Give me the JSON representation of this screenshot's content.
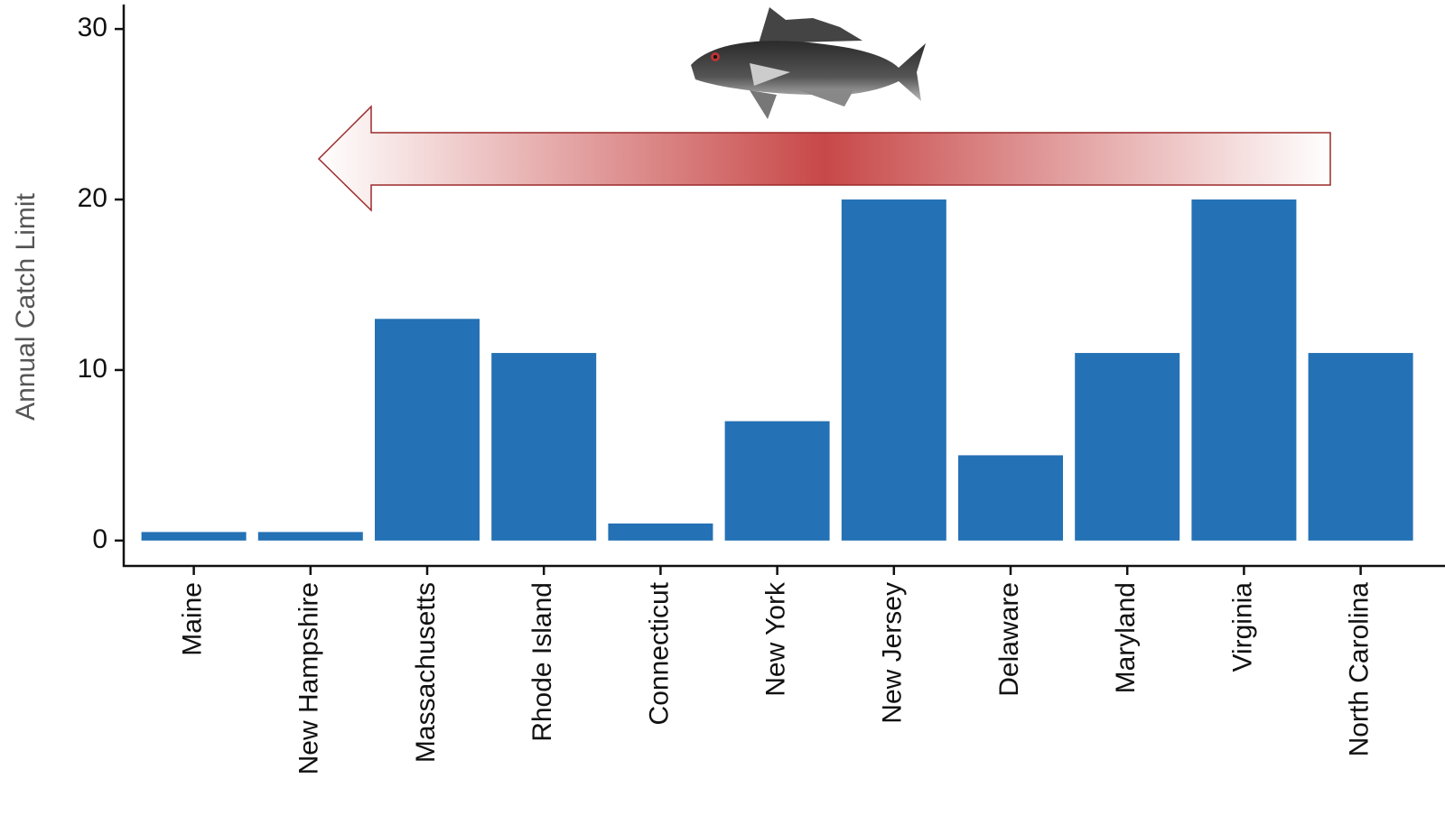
{
  "chart_data": {
    "type": "bar",
    "y_label": "Annual Catch Limit",
    "categories": [
      "Maine",
      "New Hampshire",
      "Massachusetts",
      "Rhode Island",
      "Connecticut",
      "New York",
      "New Jersey",
      "Delaware",
      "Maryland",
      "Virginia",
      "North Carolina"
    ],
    "values": [
      0.5,
      0.5,
      13,
      11,
      1,
      7,
      20,
      5,
      11,
      20,
      11
    ],
    "color": "#2471b5",
    "ylim": [
      -1.5,
      31.7
    ],
    "yticks": [
      0,
      10,
      20,
      30
    ],
    "grid": false
  }
}
